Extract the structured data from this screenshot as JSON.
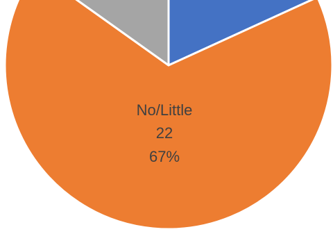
{
  "chart_data": {
    "type": "pie",
    "slices": [
      {
        "name": "",
        "value": 6,
        "percent": "18%",
        "color": "#4472C4"
      },
      {
        "name": "No/Little",
        "value": 22,
        "percent": "67%",
        "color": "#ED7D31"
      },
      {
        "name": "",
        "value": 5,
        "percent": "15%",
        "color": "#A5A5A5"
      }
    ],
    "visible_label": {
      "category": "No/Little",
      "value": "22",
      "percent": "67%"
    },
    "title": "",
    "legend": "none"
  }
}
